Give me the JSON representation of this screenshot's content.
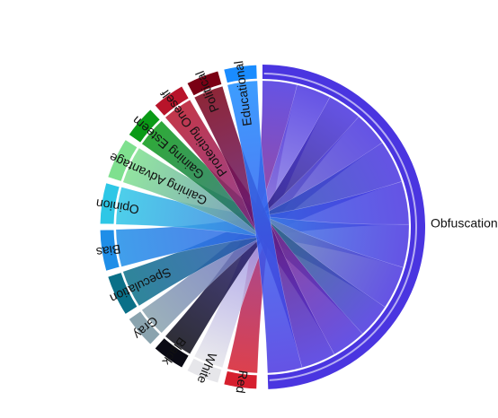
{
  "chart_data": {
    "type": "chord",
    "title": "",
    "target": "Obfuscation",
    "sources": [
      {
        "name": "Educational",
        "value": 4,
        "color": "#1a8cff"
      },
      {
        "name": "Political",
        "value": 4,
        "color": "#7a0014"
      },
      {
        "name": "Protecting Oneself",
        "value": 4,
        "color": "#b8142a"
      },
      {
        "name": "Gaining Esteem",
        "value": 4,
        "color": "#0a9a16"
      },
      {
        "name": "Gaining Advantage",
        "value": 5,
        "color": "#7fe08f"
      },
      {
        "name": "Opinion",
        "value": 5,
        "color": "#2ec7e6"
      },
      {
        "name": "Bias",
        "value": 5,
        "color": "#1f8ee8"
      },
      {
        "name": "Speculation",
        "value": 5,
        "color": "#0a7088"
      },
      {
        "name": "Gray",
        "value": 4,
        "color": "#8aa3ae"
      },
      {
        "name": "Black",
        "value": 4,
        "color": "#0a0a14"
      },
      {
        "name": "White",
        "value": 4,
        "color": "#e6e6ea"
      },
      {
        "name": "Red",
        "value": 4,
        "color": "#d61f2e"
      }
    ],
    "target_color": "#4a35e0",
    "labels": [
      "Educational",
      "Political",
      "Protecting Oneself",
      "Gaining Esteem",
      "Gaining Advantage",
      "Opinion",
      "Bias",
      "Speculation",
      "Gray",
      "Black",
      "White",
      "Red",
      "Obfuscation"
    ],
    "legend": "none",
    "grid": false
  }
}
